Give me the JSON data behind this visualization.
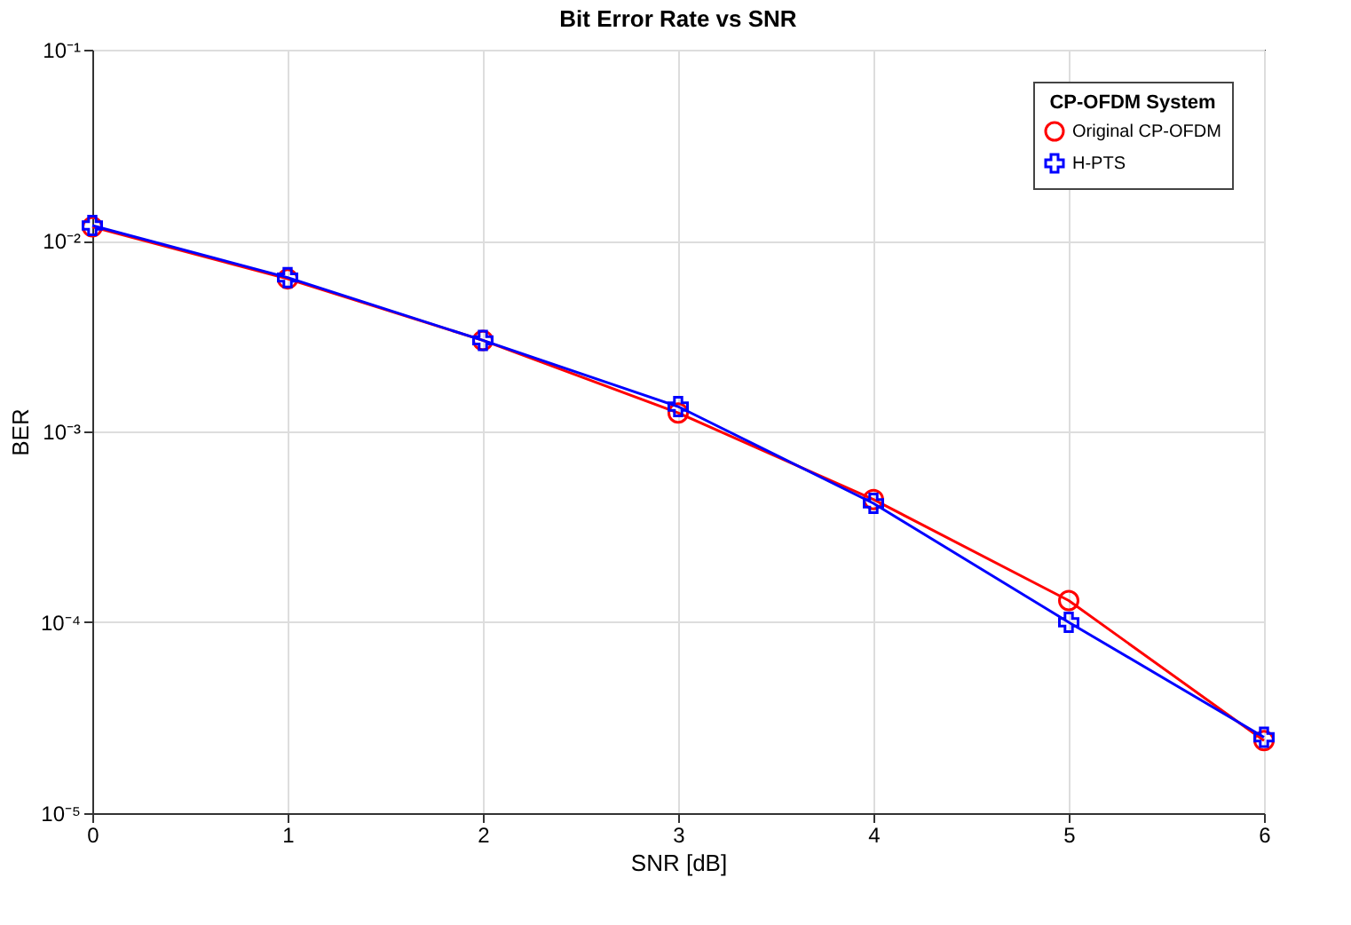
{
  "chart_data": {
    "type": "line",
    "title": "Bit Error Rate vs SNR",
    "xlabel": "SNR [dB]",
    "ylabel": "BER",
    "legend_title": "CP-OFDM System",
    "x": [
      0,
      1,
      2,
      3,
      4,
      5,
      6
    ],
    "series": [
      {
        "name": "Original CP-OFDM",
        "color": "#ff0000",
        "marker": "circle",
        "values": [
          0.0118,
          0.0063,
          0.003,
          0.00125,
          0.00044,
          0.00013,
          2.4e-05
        ]
      },
      {
        "name": "H-PTS",
        "color": "#0000ff",
        "marker": "cross",
        "values": [
          0.012,
          0.0064,
          0.003,
          0.00135,
          0.00042,
          0.0001,
          2.5e-05
        ]
      }
    ],
    "xlim": [
      0,
      6
    ],
    "xticks": [
      0,
      1,
      2,
      3,
      4,
      5,
      6
    ],
    "ylim": [
      1e-05,
      0.1
    ],
    "yticks": [
      {
        "value": 1e-05,
        "label": "10⁻⁵"
      },
      {
        "value": 0.0001,
        "label": "10⁻⁴"
      },
      {
        "value": 0.001,
        "label": "10⁻³"
      },
      {
        "value": 0.01,
        "label": "10⁻²"
      },
      {
        "value": 0.1,
        "label": "10⁻¹"
      }
    ],
    "log": true,
    "grid": true,
    "legend": "top right",
    "line_style": "solid"
  }
}
